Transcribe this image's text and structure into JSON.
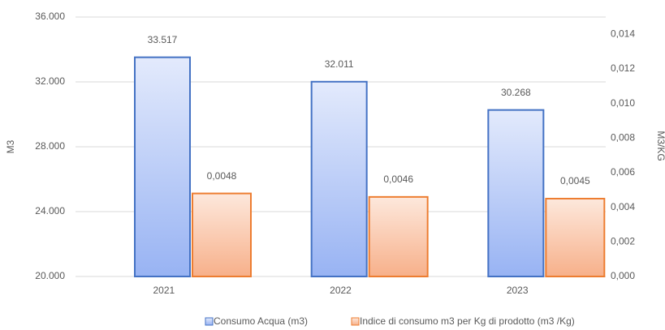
{
  "chart_data": {
    "type": "bar",
    "categories": [
      "2021",
      "2022",
      "2023"
    ],
    "series": [
      {
        "name": "Consumo Acqua (m3)",
        "color": "#4472c4",
        "values": [
          33517,
          32011,
          30268
        ],
        "value_labels": [
          "33.517",
          "32.011",
          "30.268"
        ]
      },
      {
        "name": "Indice di consumo m3 per Kg di prodotto (m3 /Kg)",
        "color": "#ed7d31",
        "axis": "y2",
        "values": [
          0.0048,
          0.0046,
          0.0045
        ],
        "value_labels": [
          "0,0048",
          "0,0046",
          "0,0045"
        ]
      }
    ],
    "ylabel": "M3",
    "y2label": "M3/KG",
    "ylim": [
      20000,
      36000
    ],
    "yticks": [
      {
        "value": 20000,
        "label": "20.000"
      },
      {
        "value": 24000,
        "label": "24.000"
      },
      {
        "value": 28000,
        "label": "28.000"
      },
      {
        "value": 32000,
        "label": "32.000"
      },
      {
        "value": 36000,
        "label": "36.000"
      }
    ],
    "y2lim": [
      0,
      0.015
    ],
    "y2ticks": [
      {
        "value": 0,
        "label": "0,000"
      },
      {
        "value": 0.002,
        "label": "0,002"
      },
      {
        "value": 0.004,
        "label": "0,004"
      },
      {
        "value": 0.006,
        "label": "0,006"
      },
      {
        "value": 0.008,
        "label": "0,008"
      },
      {
        "value": 0.01,
        "label": "0,010"
      },
      {
        "value": 0.012,
        "label": "0,012"
      },
      {
        "value": 0.014,
        "label": "0,014"
      }
    ],
    "grid": true,
    "legend": "bottom"
  }
}
